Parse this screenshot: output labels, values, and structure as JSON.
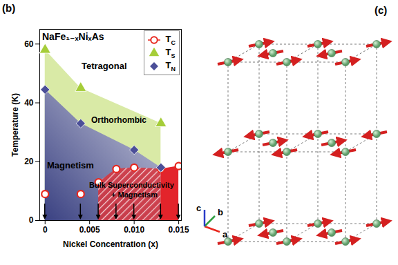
{
  "chart_data": {
    "type": "scatter",
    "title": "NaFe₁₋ₓNiₓAs",
    "x_label": "Nickel Concentration (x)",
    "y_label": "Temperature (K)",
    "annotations": [
      "(b)",
      "Tetragonal",
      "Orthorhombic",
      "Magnetism",
      "Bulk Superconductivity",
      "+ Magnetism"
    ],
    "x": [
      0,
      0.004,
      0.006,
      0.008,
      0.01,
      0.013,
      0.015
    ],
    "series": [
      {
        "name": "TC",
        "color": "#e8281e",
        "marker": "open-circle",
        "values": [
          9,
          9,
          13,
          17.5,
          18,
          17.5,
          18.5
        ]
      },
      {
        "name": "TS",
        "color": "#a5cd39",
        "marker": "triangle",
        "values": [
          58,
          45,
          null,
          null,
          null,
          33,
          null
        ]
      },
      {
        "name": "TN",
        "color": "#4b4f98",
        "marker": "diamond",
        "values": [
          44.5,
          33,
          null,
          null,
          24,
          18,
          null
        ]
      }
    ],
    "xlim": [
      -0.0006,
      0.0153
    ],
    "ylim": [
      0,
      65
    ],
    "xticks": [
      0,
      0.005,
      {
        "value": 0.01,
        "label": "0.010"
      },
      0.015
    ],
    "yticks": [
      0,
      20,
      40,
      60
    ],
    "legend": "upper right"
  },
  "diagram": {
    "panel_label": "(c)",
    "axis_labels": [
      "a",
      "b",
      "c"
    ]
  }
}
